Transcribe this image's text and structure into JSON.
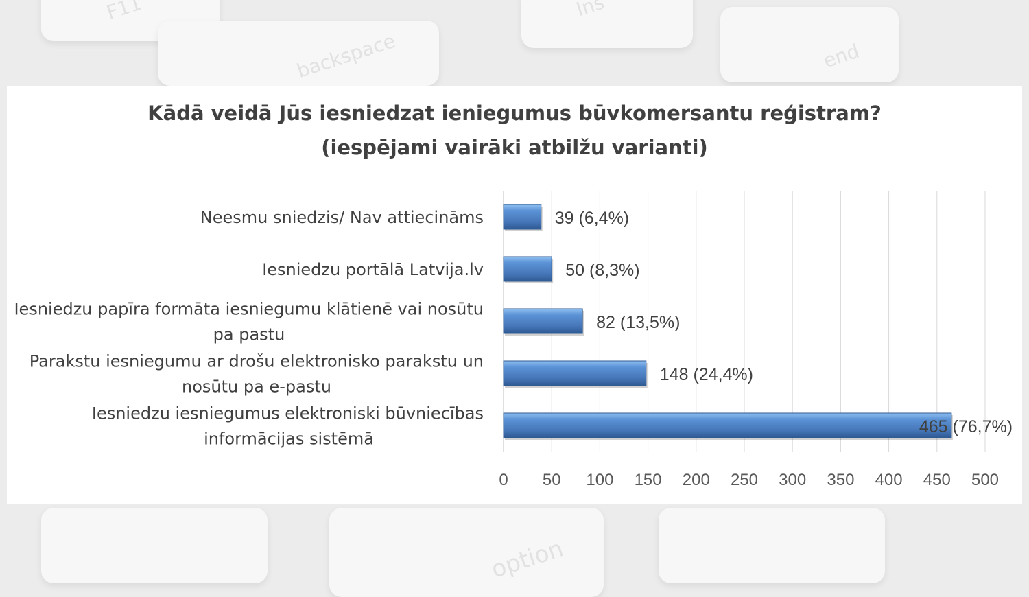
{
  "chart_data": {
    "type": "bar",
    "orientation": "horizontal",
    "title": "Kādā veidā Jūs iesniedzat ieniegumus būvkomersantu reģistram?",
    "subtitle": "(iespējami vairāki atbilžu varianti)",
    "categories": [
      [
        "Neesmu sniedzis/ Nav attiecināms"
      ],
      [
        "Iesniedzu portālā Latvija.lv"
      ],
      [
        "Iesniedzu papīra formāta iesniegumu klātienē vai nosūtu",
        "pa pastu"
      ],
      [
        "Parakstu iesniegumu ar drošu elektronisko parakstu un",
        "nosūtu pa e-pastu"
      ],
      [
        "Iesniedzu iesniegumus elektroniski būvniecības",
        "informācijas sistēmā"
      ]
    ],
    "values": [
      39,
      50,
      82,
      148,
      465
    ],
    "data_labels": [
      "39 (6,4%)",
      "50 (8,3%)",
      "82 (13,5%)",
      "148 (24,4%)",
      "465 (76,7%)"
    ],
    "xlim": [
      0,
      500
    ],
    "xticks": [
      "0",
      "50",
      "100",
      "150",
      "200",
      "250",
      "300",
      "350",
      "400",
      "450",
      "500"
    ],
    "grid": true,
    "bar_color": "#4a7ebf"
  },
  "background_keys": [
    "backspace",
    "end",
    "option",
    "F11",
    "Ins"
  ]
}
